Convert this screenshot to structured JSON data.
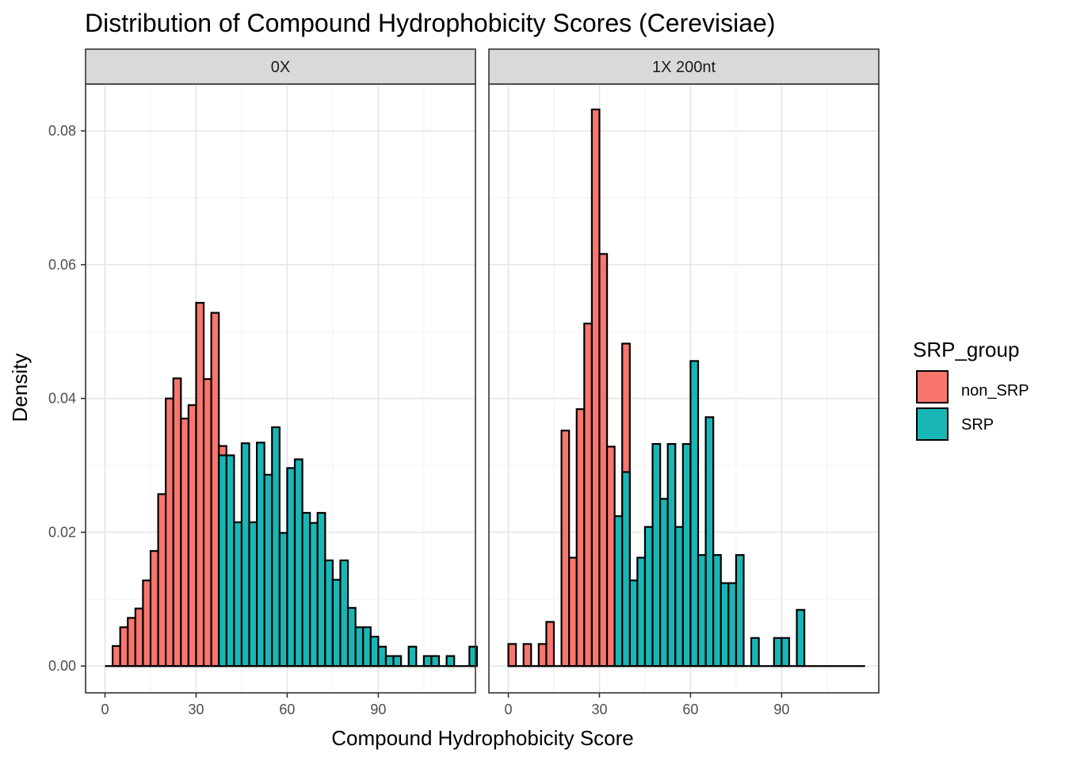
{
  "colors": {
    "non_SRP": "#F8766D",
    "SRP": "#19B6B6",
    "panel_border": "#333333",
    "strip_fill": "#D9D9D9",
    "grid_major": "#E5E5E5",
    "grid_minor": "#F2F2F2"
  },
  "chart_data": {
    "type": "histogram",
    "title": "Distribution of Compound Hydrophobicity Scores (Cerevisiae)",
    "xlabel": "Compound Hydrophobicity Score",
    "ylabel": "Density",
    "xlim": [
      -6.4,
      122
    ],
    "ylim": [
      -0.004,
      0.087
    ],
    "x_ticks": [
      0,
      30,
      60,
      90
    ],
    "y_ticks": [
      0.0,
      0.02,
      0.04,
      0.06,
      0.08
    ],
    "y_tick_labels": [
      "0.00",
      "0.02",
      "0.04",
      "0.06",
      "0.08"
    ],
    "bin_width": 2.5,
    "bins_start": 0,
    "grid": true,
    "legend": {
      "title": "SRP_group",
      "position": "right",
      "entries": [
        "non_SRP",
        "SRP"
      ]
    },
    "panels": [
      {
        "label": "0X",
        "values": [
          0,
          0.003,
          0.0058,
          0.0072,
          0.0086,
          0.0128,
          0.0172,
          0.0257,
          0.04,
          0.043,
          0.037,
          0.039,
          0.0543,
          0.0429,
          0.0528,
          0.0329,
          0.0315,
          0.0215,
          0.0333,
          0.0215,
          0.0334,
          0.0286,
          0.0357,
          0.0199,
          0.0296,
          0.0309,
          0.0229,
          0.0214,
          0.0229,
          0.0158,
          0.0129,
          0.0158,
          0.0087,
          0.0058,
          0.0058,
          0.0044,
          0.0029,
          0.0015,
          0.0015,
          0,
          0.0029,
          0,
          0.0015,
          0.0015,
          0,
          0.0015,
          0,
          0,
          0.0029
        ],
        "groups": [
          "non_SRP",
          "non_SRP",
          "non_SRP",
          "non_SRP",
          "non_SRP",
          "non_SRP",
          "non_SRP",
          "non_SRP",
          "non_SRP",
          "non_SRP",
          "non_SRP",
          "non_SRP",
          "non_SRP",
          "non_SRP",
          "non_SRP",
          "non_SRP",
          "SRP",
          "SRP",
          "SRP",
          "SRP",
          "SRP",
          "SRP",
          "SRP",
          "SRP",
          "SRP",
          "SRP",
          "SRP",
          "SRP",
          "SRP",
          "SRP",
          "SRP",
          "SRP",
          "SRP",
          "SRP",
          "SRP",
          "SRP",
          "SRP",
          "SRP",
          "SRP",
          "SRP",
          "SRP",
          "SRP",
          "SRP",
          "SRP",
          "SRP",
          "SRP",
          "SRP",
          "SRP",
          "SRP"
        ],
        "overlay": [
          {
            "bin": 15,
            "group": "SRP",
            "value": 0.0315
          }
        ]
      },
      {
        "label": "1X 200nt",
        "values": [
          0.0033,
          0,
          0.0033,
          0,
          0.0033,
          0.0066,
          0,
          0.0352,
          0.0162,
          0.0384,
          0.0512,
          0.0832,
          0.0616,
          0.0328,
          0.0224,
          0.0482,
          0.0128,
          0.0162,
          0.0208,
          0.0332,
          0.025,
          0.0332,
          0.0208,
          0.0332,
          0.0456,
          0.0166,
          0.0372,
          0.0166,
          0.0124,
          0.0124,
          0.0166,
          0,
          0.0042,
          0,
          0,
          0.0042,
          0.0042,
          0,
          0.0084,
          0,
          0,
          0,
          0,
          0,
          0,
          0,
          0
        ],
        "groups": [
          "non_SRP",
          "non_SRP",
          "non_SRP",
          "non_SRP",
          "non_SRP",
          "non_SRP",
          "non_SRP",
          "non_SRP",
          "non_SRP",
          "non_SRP",
          "non_SRP",
          "non_SRP",
          "non_SRP",
          "non_SRP",
          "non_SRP",
          "non_SRP",
          "SRP",
          "SRP",
          "SRP",
          "SRP",
          "SRP",
          "SRP",
          "SRP",
          "SRP",
          "SRP",
          "SRP",
          "SRP",
          "SRP",
          "SRP",
          "SRP",
          "SRP",
          "SRP",
          "SRP",
          "SRP",
          "SRP",
          "SRP",
          "SRP",
          "SRP",
          "SRP",
          "SRP",
          "SRP",
          "SRP",
          "SRP",
          "SRP",
          "SRP",
          "SRP",
          "SRP"
        ],
        "overlay": [
          {
            "bin": 14,
            "group": "SRP",
            "value": 0.0224
          },
          {
            "bin": 15,
            "group": "SRP",
            "value": 0.029
          }
        ]
      }
    ]
  }
}
